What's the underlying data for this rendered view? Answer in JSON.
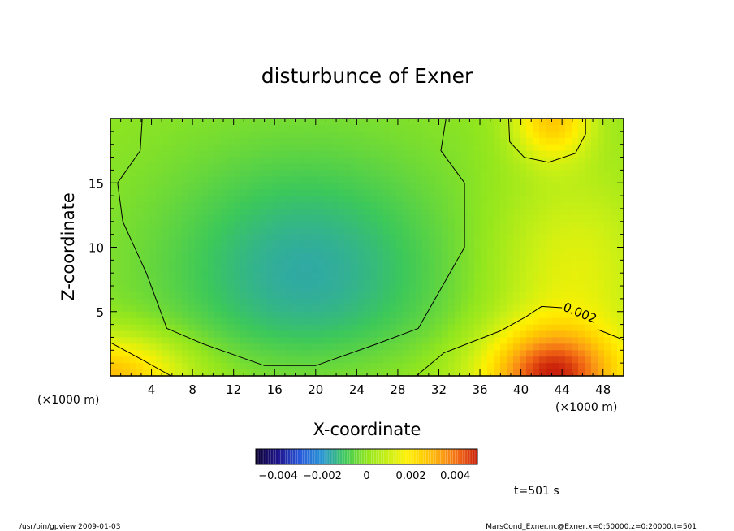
{
  "chart_data": {
    "type": "heatmap",
    "title": "disturbunce of Exner",
    "xlabel": "X-coordinate",
    "ylabel": "Z-coordinate",
    "x_unit": "(×1000 m)",
    "y_unit": "(×1000 m)",
    "xlim": [
      0,
      50
    ],
    "ylim": [
      0,
      20
    ],
    "x_ticks": [
      "4",
      "8",
      "12",
      "16",
      "20",
      "24",
      "28",
      "32",
      "36",
      "40",
      "44",
      "48"
    ],
    "y_ticks": [
      "5",
      "10",
      "15"
    ],
    "contour_label": "0.002",
    "colorbar": {
      "range": [
        -0.005,
        0.005
      ],
      "tick_labels": [
        "−0.004",
        "−0.002",
        "0",
        "0.002",
        "0.004"
      ]
    },
    "time_label": "t=501 s",
    "grid": false
  },
  "footer": {
    "left": "/usr/bin/gpview   2009-01-03",
    "right": "MarsCond_Exner.nc@Exner,x=0:50000,z=0:20000,t=501"
  }
}
